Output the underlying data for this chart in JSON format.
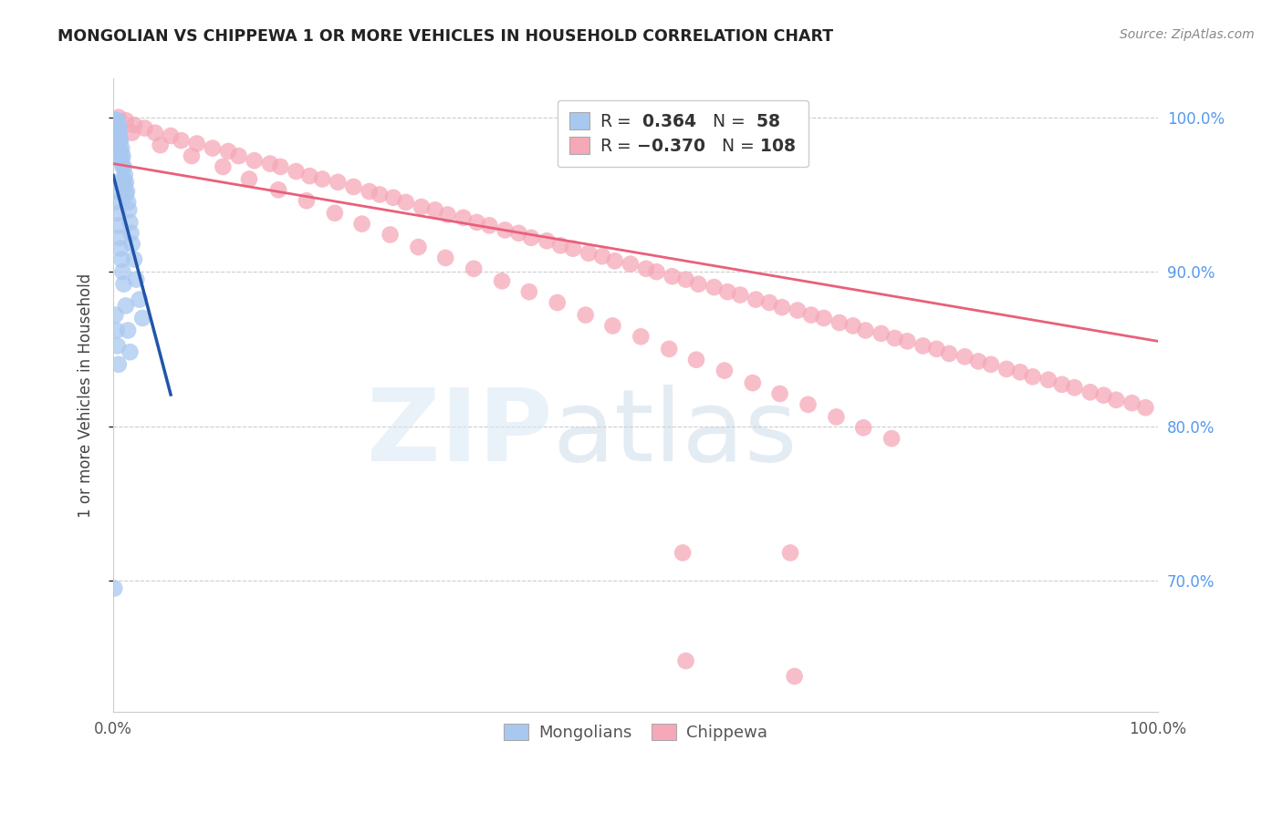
{
  "title": "MONGOLIAN VS CHIPPEWA 1 OR MORE VEHICLES IN HOUSEHOLD CORRELATION CHART",
  "source": "Source: ZipAtlas.com",
  "ylabel": "1 or more Vehicles in Household",
  "xlim": [
    0.0,
    1.0
  ],
  "ylim": [
    0.615,
    1.025
  ],
  "ytick_positions": [
    0.7,
    0.8,
    0.9,
    1.0
  ],
  "yticklabels_right": [
    "70.0%",
    "80.0%",
    "90.0%",
    "100.0%"
  ],
  "mongolian_color": "#a8c8f0",
  "chippewa_color": "#f5a8b8",
  "mongolian_line_color": "#2255aa",
  "chippewa_line_color": "#e8607a",
  "mongolian_R": 0.364,
  "mongolian_N": 58,
  "chippewa_R": -0.37,
  "chippewa_N": 108,
  "mongolian_x": [
    0.001,
    0.002,
    0.002,
    0.003,
    0.003,
    0.003,
    0.004,
    0.004,
    0.004,
    0.004,
    0.005,
    0.005,
    0.005,
    0.005,
    0.006,
    0.006,
    0.006,
    0.007,
    0.007,
    0.007,
    0.008,
    0.008,
    0.009,
    0.009,
    0.01,
    0.01,
    0.011,
    0.011,
    0.012,
    0.012,
    0.013,
    0.014,
    0.015,
    0.016,
    0.017,
    0.018,
    0.02,
    0.022,
    0.025,
    0.028,
    0.001,
    0.002,
    0.003,
    0.004,
    0.005,
    0.006,
    0.007,
    0.008,
    0.009,
    0.01,
    0.012,
    0.014,
    0.016,
    0.002,
    0.003,
    0.004,
    0.005,
    0.001
  ],
  "mongolian_y": [
    0.998,
    0.998,
    0.993,
    0.998,
    0.993,
    0.988,
    0.998,
    0.993,
    0.988,
    0.983,
    0.995,
    0.99,
    0.985,
    0.978,
    0.99,
    0.985,
    0.978,
    0.985,
    0.978,
    0.972,
    0.98,
    0.973,
    0.975,
    0.968,
    0.968,
    0.96,
    0.963,
    0.956,
    0.958,
    0.95,
    0.952,
    0.945,
    0.94,
    0.932,
    0.925,
    0.918,
    0.908,
    0.895,
    0.882,
    0.87,
    0.958,
    0.952,
    0.945,
    0.938,
    0.93,
    0.922,
    0.915,
    0.908,
    0.9,
    0.892,
    0.878,
    0.862,
    0.848,
    0.872,
    0.862,
    0.852,
    0.84,
    0.695
  ],
  "chippewa_x": [
    0.005,
    0.012,
    0.02,
    0.03,
    0.04,
    0.055,
    0.065,
    0.08,
    0.095,
    0.11,
    0.12,
    0.135,
    0.15,
    0.16,
    0.175,
    0.188,
    0.2,
    0.215,
    0.23,
    0.245,
    0.255,
    0.268,
    0.28,
    0.295,
    0.308,
    0.32,
    0.335,
    0.348,
    0.36,
    0.375,
    0.388,
    0.4,
    0.415,
    0.428,
    0.44,
    0.455,
    0.468,
    0.48,
    0.495,
    0.51,
    0.52,
    0.535,
    0.548,
    0.56,
    0.575,
    0.588,
    0.6,
    0.615,
    0.628,
    0.64,
    0.655,
    0.668,
    0.68,
    0.695,
    0.708,
    0.72,
    0.735,
    0.748,
    0.76,
    0.775,
    0.788,
    0.8,
    0.815,
    0.828,
    0.84,
    0.855,
    0.868,
    0.88,
    0.895,
    0.908,
    0.92,
    0.935,
    0.948,
    0.96,
    0.975,
    0.988,
    0.018,
    0.045,
    0.075,
    0.105,
    0.13,
    0.158,
    0.185,
    0.212,
    0.238,
    0.265,
    0.292,
    0.318,
    0.345,
    0.372,
    0.398,
    0.425,
    0.452,
    0.478,
    0.505,
    0.532,
    0.558,
    0.585,
    0.612,
    0.638,
    0.665,
    0.692,
    0.718,
    0.745,
    0.545,
    0.648,
    0.548,
    0.652
  ],
  "chippewa_y": [
    1.0,
    0.998,
    0.995,
    0.993,
    0.99,
    0.988,
    0.985,
    0.983,
    0.98,
    0.978,
    0.975,
    0.972,
    0.97,
    0.968,
    0.965,
    0.962,
    0.96,
    0.958,
    0.955,
    0.952,
    0.95,
    0.948,
    0.945,
    0.942,
    0.94,
    0.937,
    0.935,
    0.932,
    0.93,
    0.927,
    0.925,
    0.922,
    0.92,
    0.917,
    0.915,
    0.912,
    0.91,
    0.907,
    0.905,
    0.902,
    0.9,
    0.897,
    0.895,
    0.892,
    0.89,
    0.887,
    0.885,
    0.882,
    0.88,
    0.877,
    0.875,
    0.872,
    0.87,
    0.867,
    0.865,
    0.862,
    0.86,
    0.857,
    0.855,
    0.852,
    0.85,
    0.847,
    0.845,
    0.842,
    0.84,
    0.837,
    0.835,
    0.832,
    0.83,
    0.827,
    0.825,
    0.822,
    0.82,
    0.817,
    0.815,
    0.812,
    0.99,
    0.982,
    0.975,
    0.968,
    0.96,
    0.953,
    0.946,
    0.938,
    0.931,
    0.924,
    0.916,
    0.909,
    0.902,
    0.894,
    0.887,
    0.88,
    0.872,
    0.865,
    0.858,
    0.85,
    0.843,
    0.836,
    0.828,
    0.821,
    0.814,
    0.806,
    0.799,
    0.792,
    0.718,
    0.718,
    0.648,
    0.638
  ]
}
